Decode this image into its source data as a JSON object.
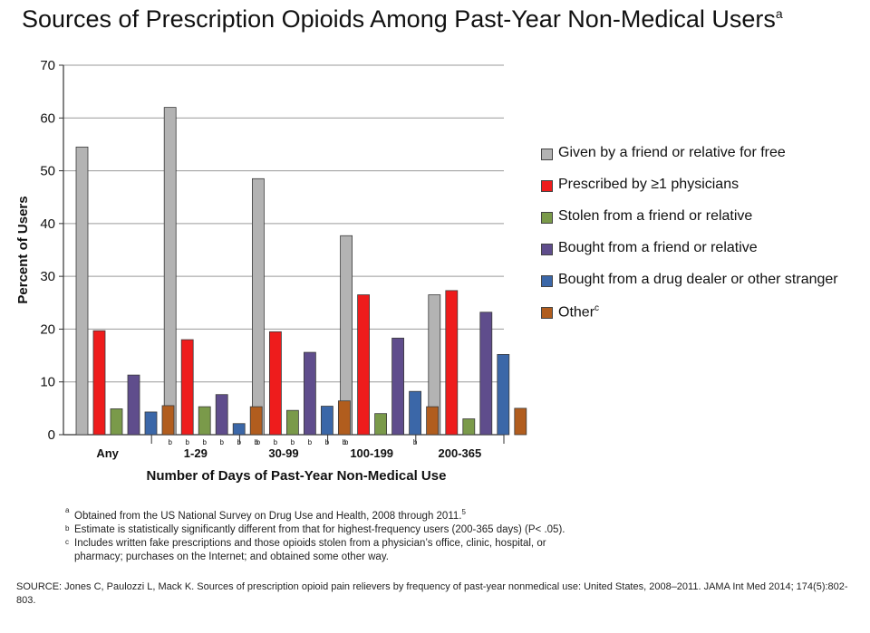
{
  "title": "Sources of Prescription Opioids Among Past-Year Non-Medical Users",
  "title_superscript": "a",
  "chart_data": {
    "type": "bar",
    "xlabel": "Number of Days of Past-Year Non-Medical Use",
    "ylabel": "Percent of Users",
    "ylim": [
      0,
      70
    ],
    "yticks": [
      0,
      10,
      20,
      30,
      40,
      50,
      60,
      70
    ],
    "grid": true,
    "legend_position": "right",
    "categories": [
      "Any",
      "1-29",
      "30-99",
      "100-199",
      "200-365"
    ],
    "series": [
      {
        "name": "Given by a friend or relative for free",
        "color": "#b3b3b3",
        "values": [
          54.5,
          62.0,
          48.5,
          37.7,
          26.5
        ]
      },
      {
        "name": "Prescribed by ≥1 physicians",
        "color": "#ee1c1c",
        "values": [
          19.7,
          18.0,
          19.5,
          26.5,
          27.3
        ]
      },
      {
        "name": "Stolen from a friend or relative",
        "color": "#7a9a4a",
        "values": [
          4.9,
          5.3,
          4.6,
          4.0,
          3.0
        ]
      },
      {
        "name": "Bought from a friend or relative",
        "color": "#5f4d8c",
        "values": [
          11.3,
          7.6,
          15.6,
          18.3,
          23.2
        ]
      },
      {
        "name": "Bought from a drug dealer or other stranger",
        "color": "#3b67a8",
        "values": [
          4.3,
          2.1,
          5.4,
          8.2,
          15.2
        ]
      },
      {
        "name": "Other",
        "name_superscript": "c",
        "color": "#b15d1e",
        "values": [
          5.5,
          5.3,
          6.4,
          5.3,
          5.0
        ]
      }
    ],
    "annotations": [
      {
        "category": "1-29",
        "series_index": 0,
        "text": "b"
      },
      {
        "category": "1-29",
        "series_index": 1,
        "text": "b"
      },
      {
        "category": "1-29",
        "series_index": 2,
        "text": "b"
      },
      {
        "category": "1-29",
        "series_index": 3,
        "text": "b"
      },
      {
        "category": "1-29",
        "series_index": 4,
        "text": "b"
      },
      {
        "category": "1-29",
        "series_index": 5,
        "text": "b"
      },
      {
        "category": "30-99",
        "series_index": 0,
        "text": "b"
      },
      {
        "category": "30-99",
        "series_index": 1,
        "text": "b"
      },
      {
        "category": "30-99",
        "series_index": 2,
        "text": "b"
      },
      {
        "category": "30-99",
        "series_index": 3,
        "text": "b"
      },
      {
        "category": "30-99",
        "series_index": 4,
        "text": "b"
      },
      {
        "category": "30-99",
        "series_index": 5,
        "text": "b"
      },
      {
        "category": "100-199",
        "series_index": 0,
        "text": "b"
      },
      {
        "category": "100-199",
        "series_index": 4,
        "text": "b"
      }
    ]
  },
  "footnotes": [
    {
      "mark": "a",
      "text": "Obtained from the US National Survey on Drug Use and Health, 2008 through 2011.",
      "tail_superscript": "5"
    },
    {
      "mark": "b",
      "text": "Estimate is statistically significantly different from that for highest-frequency users (200-365 days) (P< .05)."
    },
    {
      "mark": "c",
      "text": "Includes written fake prescriptions and those opioids stolen from a physician’s office, clinic, hospital, or",
      "continuation": "pharmacy; purchases on the Internet; and obtained some other way."
    }
  ],
  "source": "SOURCE: Jones C, Paulozzi L, Mack K. Sources of prescription opioid pain relievers by frequency of past-year nonmedical use: United States, 2008–2011. JAMA Int Med 2014; 174(5):802-803."
}
